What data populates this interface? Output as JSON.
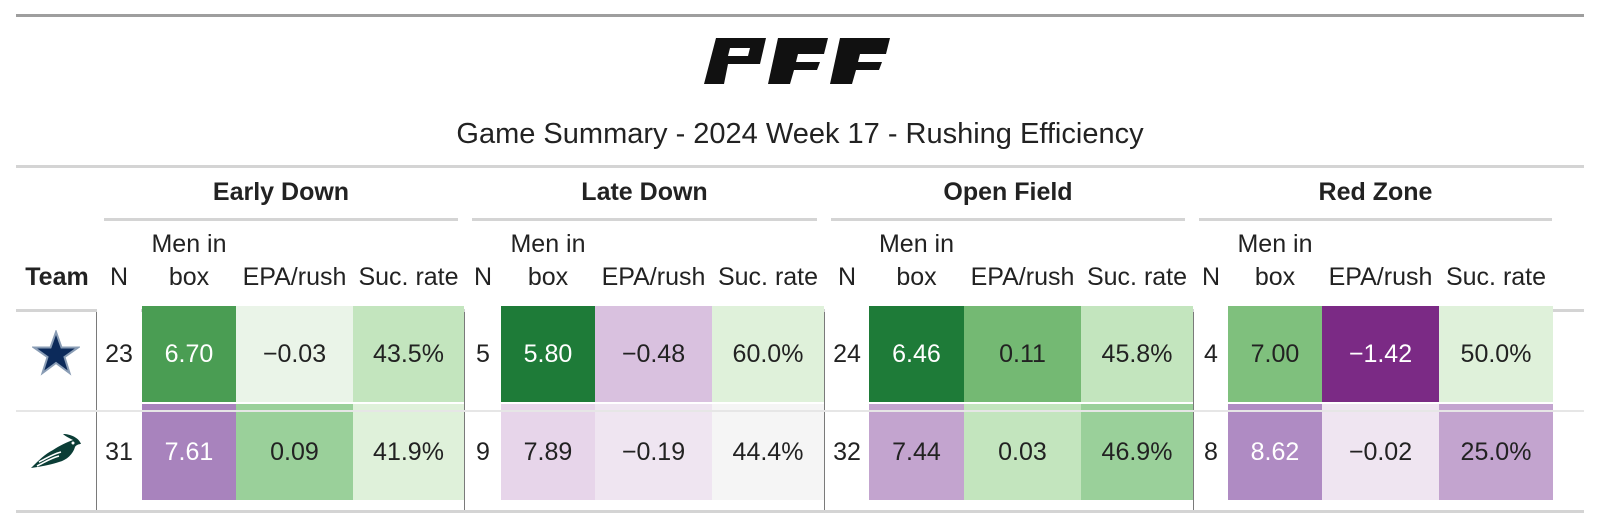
{
  "brand": {
    "logo_text": "PFF"
  },
  "title": "Game Summary - 2024 Week 17 - Rushing Efficiency",
  "groups": [
    "Early Down",
    "Late Down",
    "Open Field",
    "Red Zone"
  ],
  "columns": {
    "team": "Team",
    "n": "N",
    "men_line1": "Men in",
    "men_line2": "box",
    "epa": "EPA/rush",
    "suc": "Suc. rate"
  },
  "rows": [
    {
      "team_icon": "cowboys-star-icon",
      "cells": [
        {
          "text": "23",
          "bg": "#ffffff",
          "fg": "#222222"
        },
        {
          "text": "6.70",
          "bg": "#4a9d53",
          "fg": "#ffffff"
        },
        {
          "text": "−0.03",
          "bg": "#eaf4e8",
          "fg": "#222222"
        },
        {
          "text": "43.5%",
          "bg": "#c3e5be",
          "fg": "#222222"
        },
        {
          "text": "5",
          "bg": "#ffffff",
          "fg": "#222222"
        },
        {
          "text": "5.80",
          "bg": "#1e7b38",
          "fg": "#ffffff"
        },
        {
          "text": "−0.48",
          "bg": "#d9c1df",
          "fg": "#222222"
        },
        {
          "text": "60.0%",
          "bg": "#dff1da",
          "fg": "#222222"
        },
        {
          "text": "24",
          "bg": "#ffffff",
          "fg": "#222222"
        },
        {
          "text": "6.46",
          "bg": "#1e7b38",
          "fg": "#ffffff"
        },
        {
          "text": "0.11",
          "bg": "#74b973",
          "fg": "#222222"
        },
        {
          "text": "45.8%",
          "bg": "#c3e5be",
          "fg": "#222222"
        },
        {
          "text": "4",
          "bg": "#ffffff",
          "fg": "#222222"
        },
        {
          "text": "7.00",
          "bg": "#7fc07d",
          "fg": "#222222"
        },
        {
          "text": "−1.42",
          "bg": "#7b2a85",
          "fg": "#ffffff"
        },
        {
          "text": "50.0%",
          "bg": "#dff1da",
          "fg": "#222222"
        }
      ]
    },
    {
      "team_icon": "eagles-head-icon",
      "cells": [
        {
          "text": "31",
          "bg": "#ffffff",
          "fg": "#222222"
        },
        {
          "text": "7.61",
          "bg": "#a883bd",
          "fg": "#ffffff"
        },
        {
          "text": "0.09",
          "bg": "#9ad09a",
          "fg": "#222222"
        },
        {
          "text": "41.9%",
          "bg": "#dff1da",
          "fg": "#222222"
        },
        {
          "text": "9",
          "bg": "#ffffff",
          "fg": "#222222"
        },
        {
          "text": "7.89",
          "bg": "#e7d5ea",
          "fg": "#222222"
        },
        {
          "text": "−0.19",
          "bg": "#efe5f1",
          "fg": "#222222"
        },
        {
          "text": "44.4%",
          "bg": "#f5f5f5",
          "fg": "#222222"
        },
        {
          "text": "32",
          "bg": "#ffffff",
          "fg": "#222222"
        },
        {
          "text": "7.44",
          "bg": "#c3a4cf",
          "fg": "#222222"
        },
        {
          "text": "0.03",
          "bg": "#c3e5be",
          "fg": "#222222"
        },
        {
          "text": "46.9%",
          "bg": "#9ad09a",
          "fg": "#222222"
        },
        {
          "text": "8",
          "bg": "#ffffff",
          "fg": "#222222"
        },
        {
          "text": "8.62",
          "bg": "#af8bc3",
          "fg": "#ffffff"
        },
        {
          "text": "−0.02",
          "bg": "#efe5f1",
          "fg": "#222222"
        },
        {
          "text": "25.0%",
          "bg": "#c3a4cf",
          "fg": "#222222"
        }
      ]
    }
  ]
}
